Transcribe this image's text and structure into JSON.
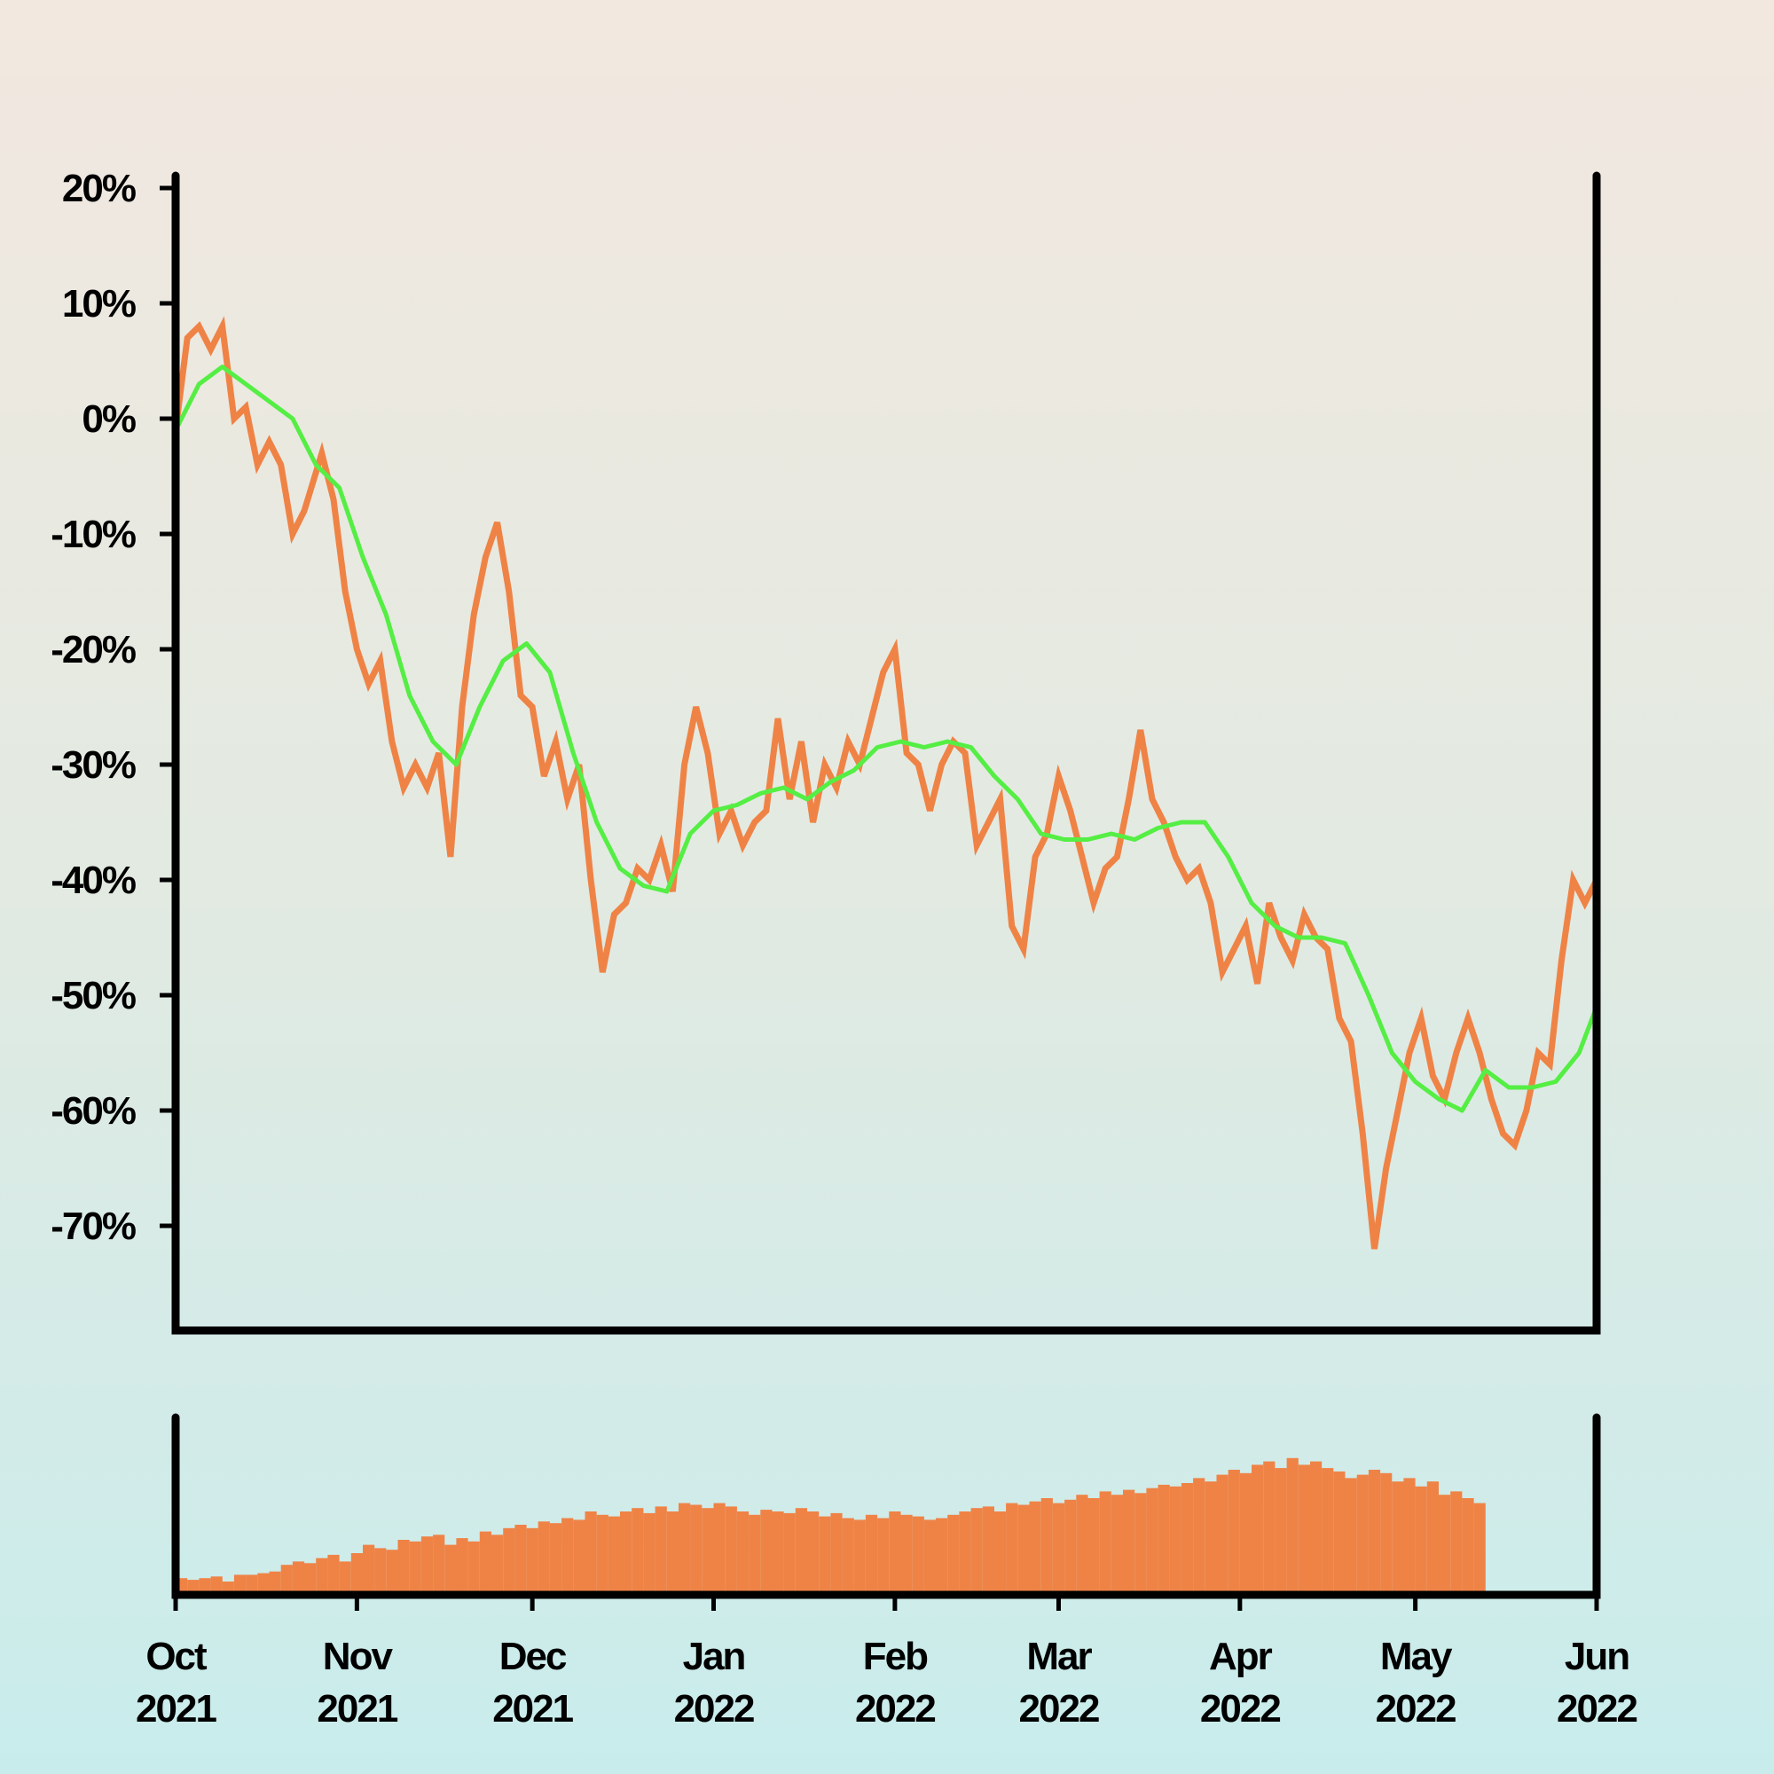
{
  "chart_data": {
    "type": "line",
    "x_range": [
      "2021-10-01",
      "2022-06-01"
    ],
    "y_unit": "%",
    "ylim": [
      -80,
      20
    ],
    "y_ticks": [
      20,
      10,
      0,
      -10,
      -20,
      -30,
      -40,
      -50,
      -60,
      -70
    ],
    "y_tick_labels": [
      "20%",
      "10%",
      "0%",
      "-10%",
      "-20%",
      "-30%",
      "-40%",
      "-50%",
      "-60%",
      "-70%"
    ],
    "x_tick_labels": [
      {
        "date": "2021-10-01",
        "month": "Oct",
        "year": "2021"
      },
      {
        "date": "2021-11-01",
        "month": "Nov",
        "year": "2021"
      },
      {
        "date": "2021-12-01",
        "month": "Dec",
        "year": "2021"
      },
      {
        "date": "2022-01-01",
        "month": "Jan",
        "year": "2022"
      },
      {
        "date": "2022-02-01",
        "month": "Feb",
        "year": "2022"
      },
      {
        "date": "2022-03-01",
        "month": "Mar",
        "year": "2022"
      },
      {
        "date": "2022-04-01",
        "month": "Apr",
        "year": "2022"
      },
      {
        "date": "2022-05-01",
        "month": "May",
        "year": "2022"
      },
      {
        "date": "2022-06-01",
        "month": "Jun",
        "year": "2022"
      }
    ],
    "grid": false,
    "legend": "none",
    "colors": {
      "price": "#ef8346",
      "moving_average": "#55ee44",
      "volume": "#ef8346",
      "axis": "#000000"
    },
    "series": [
      {
        "key": "price",
        "points": [
          [
            "2021-10-01",
            -1
          ],
          [
            "2021-10-03",
            7
          ],
          [
            "2021-10-05",
            8
          ],
          [
            "2021-10-07",
            6
          ],
          [
            "2021-10-09",
            8
          ],
          [
            "2021-10-11",
            0
          ],
          [
            "2021-10-13",
            1
          ],
          [
            "2021-10-15",
            -4
          ],
          [
            "2021-10-17",
            -2
          ],
          [
            "2021-10-19",
            -4
          ],
          [
            "2021-10-21",
            -10
          ],
          [
            "2021-10-23",
            -8
          ],
          [
            "2021-10-26",
            -3
          ],
          [
            "2021-10-28",
            -7
          ],
          [
            "2021-10-30",
            -15
          ],
          [
            "2021-11-01",
            -20
          ],
          [
            "2021-11-03",
            -23
          ],
          [
            "2021-11-05",
            -21
          ],
          [
            "2021-11-07",
            -28
          ],
          [
            "2021-11-09",
            -32
          ],
          [
            "2021-11-11",
            -30
          ],
          [
            "2021-11-13",
            -32
          ],
          [
            "2021-11-15",
            -29
          ],
          [
            "2021-11-17",
            -38
          ],
          [
            "2021-11-19",
            -25
          ],
          [
            "2021-11-21",
            -17
          ],
          [
            "2021-11-23",
            -12
          ],
          [
            "2021-11-25",
            -9
          ],
          [
            "2021-11-27",
            -15
          ],
          [
            "2021-11-29",
            -24
          ],
          [
            "2021-12-01",
            -25
          ],
          [
            "2021-12-03",
            -31
          ],
          [
            "2021-12-05",
            -28
          ],
          [
            "2021-12-07",
            -33
          ],
          [
            "2021-12-09",
            -30
          ],
          [
            "2021-12-11",
            -40
          ],
          [
            "2021-12-13",
            -48
          ],
          [
            "2021-12-15",
            -43
          ],
          [
            "2021-12-17",
            -42
          ],
          [
            "2021-12-19",
            -39
          ],
          [
            "2021-12-21",
            -40
          ],
          [
            "2021-12-23",
            -37
          ],
          [
            "2021-12-25",
            -41
          ],
          [
            "2021-12-27",
            -30
          ],
          [
            "2021-12-29",
            -25
          ],
          [
            "2021-12-31",
            -29
          ],
          [
            "2022-01-02",
            -36
          ],
          [
            "2022-01-04",
            -34
          ],
          [
            "2022-01-06",
            -37
          ],
          [
            "2022-01-08",
            -35
          ],
          [
            "2022-01-10",
            -34
          ],
          [
            "2022-01-12",
            -26
          ],
          [
            "2022-01-14",
            -33
          ],
          [
            "2022-01-16",
            -28
          ],
          [
            "2022-01-18",
            -35
          ],
          [
            "2022-01-20",
            -30
          ],
          [
            "2022-01-22",
            -32
          ],
          [
            "2022-01-24",
            -28
          ],
          [
            "2022-01-26",
            -30
          ],
          [
            "2022-01-28",
            -26
          ],
          [
            "2022-01-30",
            -22
          ],
          [
            "2022-02-01",
            -20
          ],
          [
            "2022-02-03",
            -29
          ],
          [
            "2022-02-05",
            -30
          ],
          [
            "2022-02-07",
            -34
          ],
          [
            "2022-02-09",
            -30
          ],
          [
            "2022-02-11",
            -28
          ],
          [
            "2022-02-13",
            -29
          ],
          [
            "2022-02-15",
            -37
          ],
          [
            "2022-02-17",
            -35
          ],
          [
            "2022-02-19",
            -33
          ],
          [
            "2022-02-21",
            -44
          ],
          [
            "2022-02-23",
            -46
          ],
          [
            "2022-02-25",
            -38
          ],
          [
            "2022-02-27",
            -36
          ],
          [
            "2022-03-01",
            -31
          ],
          [
            "2022-03-03",
            -34
          ],
          [
            "2022-03-05",
            -38
          ],
          [
            "2022-03-07",
            -42
          ],
          [
            "2022-03-09",
            -39
          ],
          [
            "2022-03-11",
            -38
          ],
          [
            "2022-03-13",
            -33
          ],
          [
            "2022-03-15",
            -27
          ],
          [
            "2022-03-17",
            -33
          ],
          [
            "2022-03-19",
            -35
          ],
          [
            "2022-03-21",
            -38
          ],
          [
            "2022-03-23",
            -40
          ],
          [
            "2022-03-25",
            -39
          ],
          [
            "2022-03-27",
            -42
          ],
          [
            "2022-03-29",
            -48
          ],
          [
            "2022-03-31",
            -46
          ],
          [
            "2022-04-02",
            -44
          ],
          [
            "2022-04-04",
            -49
          ],
          [
            "2022-04-06",
            -42
          ],
          [
            "2022-04-08",
            -45
          ],
          [
            "2022-04-10",
            -47
          ],
          [
            "2022-04-12",
            -43
          ],
          [
            "2022-04-14",
            -45
          ],
          [
            "2022-04-16",
            -46
          ],
          [
            "2022-04-18",
            -52
          ],
          [
            "2022-04-20",
            -54
          ],
          [
            "2022-04-22",
            -62
          ],
          [
            "2022-04-24",
            -72
          ],
          [
            "2022-04-26",
            -65
          ],
          [
            "2022-04-28",
            -60
          ],
          [
            "2022-04-30",
            -55
          ],
          [
            "2022-05-02",
            -52
          ],
          [
            "2022-05-04",
            -57
          ],
          [
            "2022-05-06",
            -59
          ],
          [
            "2022-05-08",
            -55
          ],
          [
            "2022-05-10",
            -52
          ],
          [
            "2022-05-12",
            -55
          ],
          [
            "2022-05-14",
            -59
          ],
          [
            "2022-05-16",
            -62
          ],
          [
            "2022-05-18",
            -63
          ],
          [
            "2022-05-20",
            -60
          ],
          [
            "2022-05-22",
            -55
          ],
          [
            "2022-05-24",
            -56
          ],
          [
            "2022-05-26",
            -47
          ],
          [
            "2022-05-28",
            -40
          ],
          [
            "2022-05-30",
            -42
          ],
          [
            "2022-06-01",
            -40
          ]
        ]
      },
      {
        "key": "moving_average",
        "points": [
          [
            "2021-10-01",
            -1
          ],
          [
            "2021-10-05",
            3
          ],
          [
            "2021-10-09",
            4.5
          ],
          [
            "2021-10-13",
            3
          ],
          [
            "2021-10-17",
            1.5
          ],
          [
            "2021-10-21",
            0
          ],
          [
            "2021-10-25",
            -4
          ],
          [
            "2021-10-29",
            -6
          ],
          [
            "2021-11-02",
            -12
          ],
          [
            "2021-11-06",
            -17
          ],
          [
            "2021-11-10",
            -24
          ],
          [
            "2021-11-14",
            -28
          ],
          [
            "2021-11-18",
            -30
          ],
          [
            "2021-11-22",
            -25
          ],
          [
            "2021-11-26",
            -21
          ],
          [
            "2021-11-30",
            -19.5
          ],
          [
            "2021-12-04",
            -22
          ],
          [
            "2021-12-08",
            -29
          ],
          [
            "2021-12-12",
            -35
          ],
          [
            "2021-12-16",
            -39
          ],
          [
            "2021-12-20",
            -40.5
          ],
          [
            "2021-12-24",
            -41
          ],
          [
            "2021-12-28",
            -36
          ],
          [
            "2022-01-01",
            -34
          ],
          [
            "2022-01-05",
            -33.5
          ],
          [
            "2022-01-09",
            -32.5
          ],
          [
            "2022-01-13",
            -32
          ],
          [
            "2022-01-17",
            -33
          ],
          [
            "2022-01-21",
            -31.5
          ],
          [
            "2022-01-25",
            -30.5
          ],
          [
            "2022-01-29",
            -28.5
          ],
          [
            "2022-02-02",
            -28
          ],
          [
            "2022-02-06",
            -28.5
          ],
          [
            "2022-02-10",
            -28
          ],
          [
            "2022-02-14",
            -28.5
          ],
          [
            "2022-02-18",
            -31
          ],
          [
            "2022-02-22",
            -33
          ],
          [
            "2022-02-26",
            -36
          ],
          [
            "2022-03-02",
            -36.5
          ],
          [
            "2022-03-06",
            -36.5
          ],
          [
            "2022-03-10",
            -36
          ],
          [
            "2022-03-14",
            -36.5
          ],
          [
            "2022-03-18",
            -35.5
          ],
          [
            "2022-03-22",
            -35
          ],
          [
            "2022-03-26",
            -35
          ],
          [
            "2022-03-30",
            -38
          ],
          [
            "2022-04-03",
            -42
          ],
          [
            "2022-04-07",
            -44
          ],
          [
            "2022-04-11",
            -45
          ],
          [
            "2022-04-15",
            -45
          ],
          [
            "2022-04-19",
            -45.5
          ],
          [
            "2022-04-23",
            -50
          ],
          [
            "2022-04-27",
            -55
          ],
          [
            "2022-05-01",
            -57.5
          ],
          [
            "2022-05-05",
            -59
          ],
          [
            "2022-05-09",
            -60
          ],
          [
            "2022-05-13",
            -56.5
          ],
          [
            "2022-05-17",
            -58
          ],
          [
            "2022-05-21",
            -58
          ],
          [
            "2022-05-25",
            -57.5
          ],
          [
            "2022-05-29",
            -55
          ],
          [
            "2022-06-01",
            -51
          ]
        ]
      }
    ],
    "volume": {
      "relative_scale": "0 = none, 1 = panel height",
      "start": "2021-10-01",
      "step_days": 2,
      "values": [
        0.1,
        0.09,
        0.1,
        0.11,
        0.08,
        0.12,
        0.12,
        0.13,
        0.14,
        0.18,
        0.2,
        0.19,
        0.22,
        0.24,
        0.2,
        0.25,
        0.3,
        0.28,
        0.27,
        0.33,
        0.32,
        0.35,
        0.36,
        0.3,
        0.34,
        0.32,
        0.38,
        0.36,
        0.4,
        0.42,
        0.4,
        0.44,
        0.43,
        0.46,
        0.45,
        0.5,
        0.48,
        0.47,
        0.5,
        0.52,
        0.49,
        0.53,
        0.5,
        0.55,
        0.54,
        0.52,
        0.55,
        0.53,
        0.5,
        0.48,
        0.51,
        0.5,
        0.49,
        0.52,
        0.5,
        0.47,
        0.49,
        0.46,
        0.45,
        0.48,
        0.46,
        0.5,
        0.48,
        0.47,
        0.45,
        0.46,
        0.48,
        0.5,
        0.52,
        0.53,
        0.5,
        0.55,
        0.54,
        0.56,
        0.58,
        0.55,
        0.57,
        0.6,
        0.58,
        0.62,
        0.6,
        0.63,
        0.61,
        0.64,
        0.66,
        0.65,
        0.67,
        0.7,
        0.68,
        0.72,
        0.75,
        0.73,
        0.78,
        0.8,
        0.76,
        0.82,
        0.78,
        0.8,
        0.76,
        0.74,
        0.7,
        0.72,
        0.75,
        0.73,
        0.68,
        0.7,
        0.65,
        0.68,
        0.6,
        0.62,
        0.58,
        0.55
      ]
    }
  }
}
